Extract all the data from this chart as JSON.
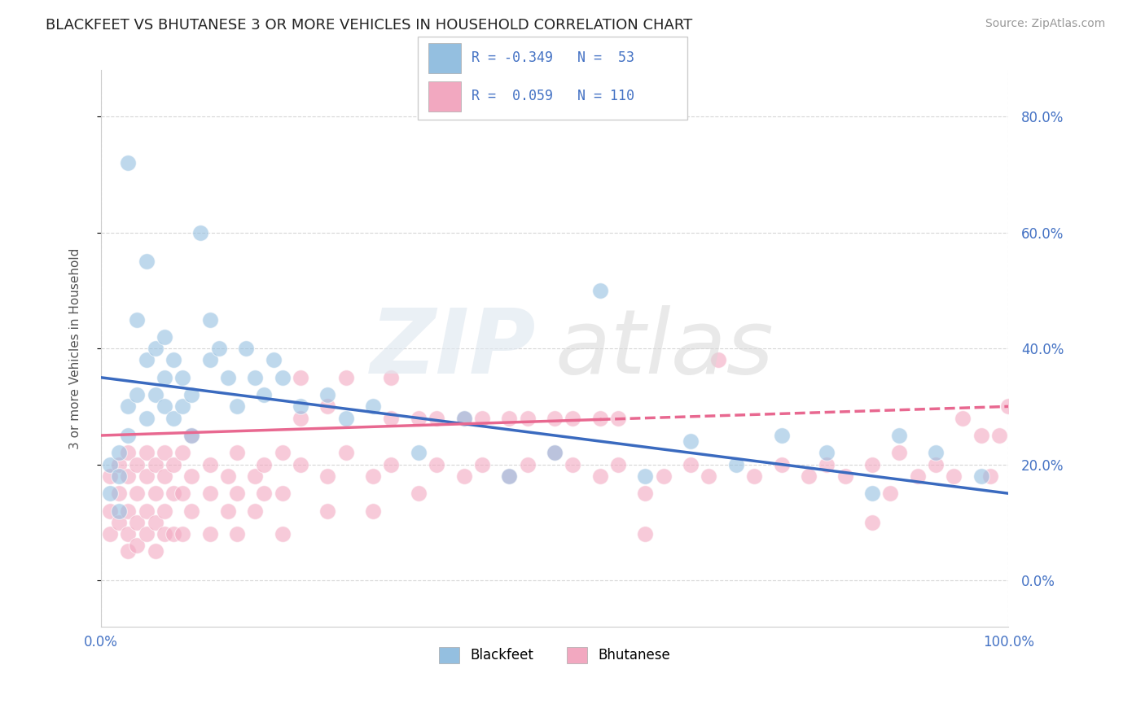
{
  "title": "BLACKFEET VS BHUTANESE 3 OR MORE VEHICLES IN HOUSEHOLD CORRELATION CHART",
  "source": "Source: ZipAtlas.com",
  "ylabel": "3 or more Vehicles in Household",
  "xlim": [
    0,
    100
  ],
  "ylim": [
    -8,
    88
  ],
  "yticks": [
    0,
    20,
    40,
    60,
    80
  ],
  "ytick_labels_right": [
    "0.0%",
    "20.0%",
    "40.0%",
    "60.0%",
    "80.0%"
  ],
  "color_blue": "#94bfe0",
  "color_pink": "#f2a8c0",
  "color_blue_line": "#3a6abf",
  "color_pink_line": "#e86890",
  "color_stats": "#4472c4",
  "color_grid": "#cccccc",
  "bf_line_x0": 0,
  "bf_line_y0": 35,
  "bf_line_x1": 100,
  "bf_line_y1": 15,
  "bt_line_x0": 0,
  "bt_line_y0": 25,
  "bt_line_x1": 100,
  "bt_line_y1": 30,
  "bt_line_solid_end": 55,
  "watermark_zip": "ZIP",
  "watermark_atlas": "atlas",
  "legend_line1": "R = -0.349   N =  53",
  "legend_line2": "R =  0.059   N = 110"
}
